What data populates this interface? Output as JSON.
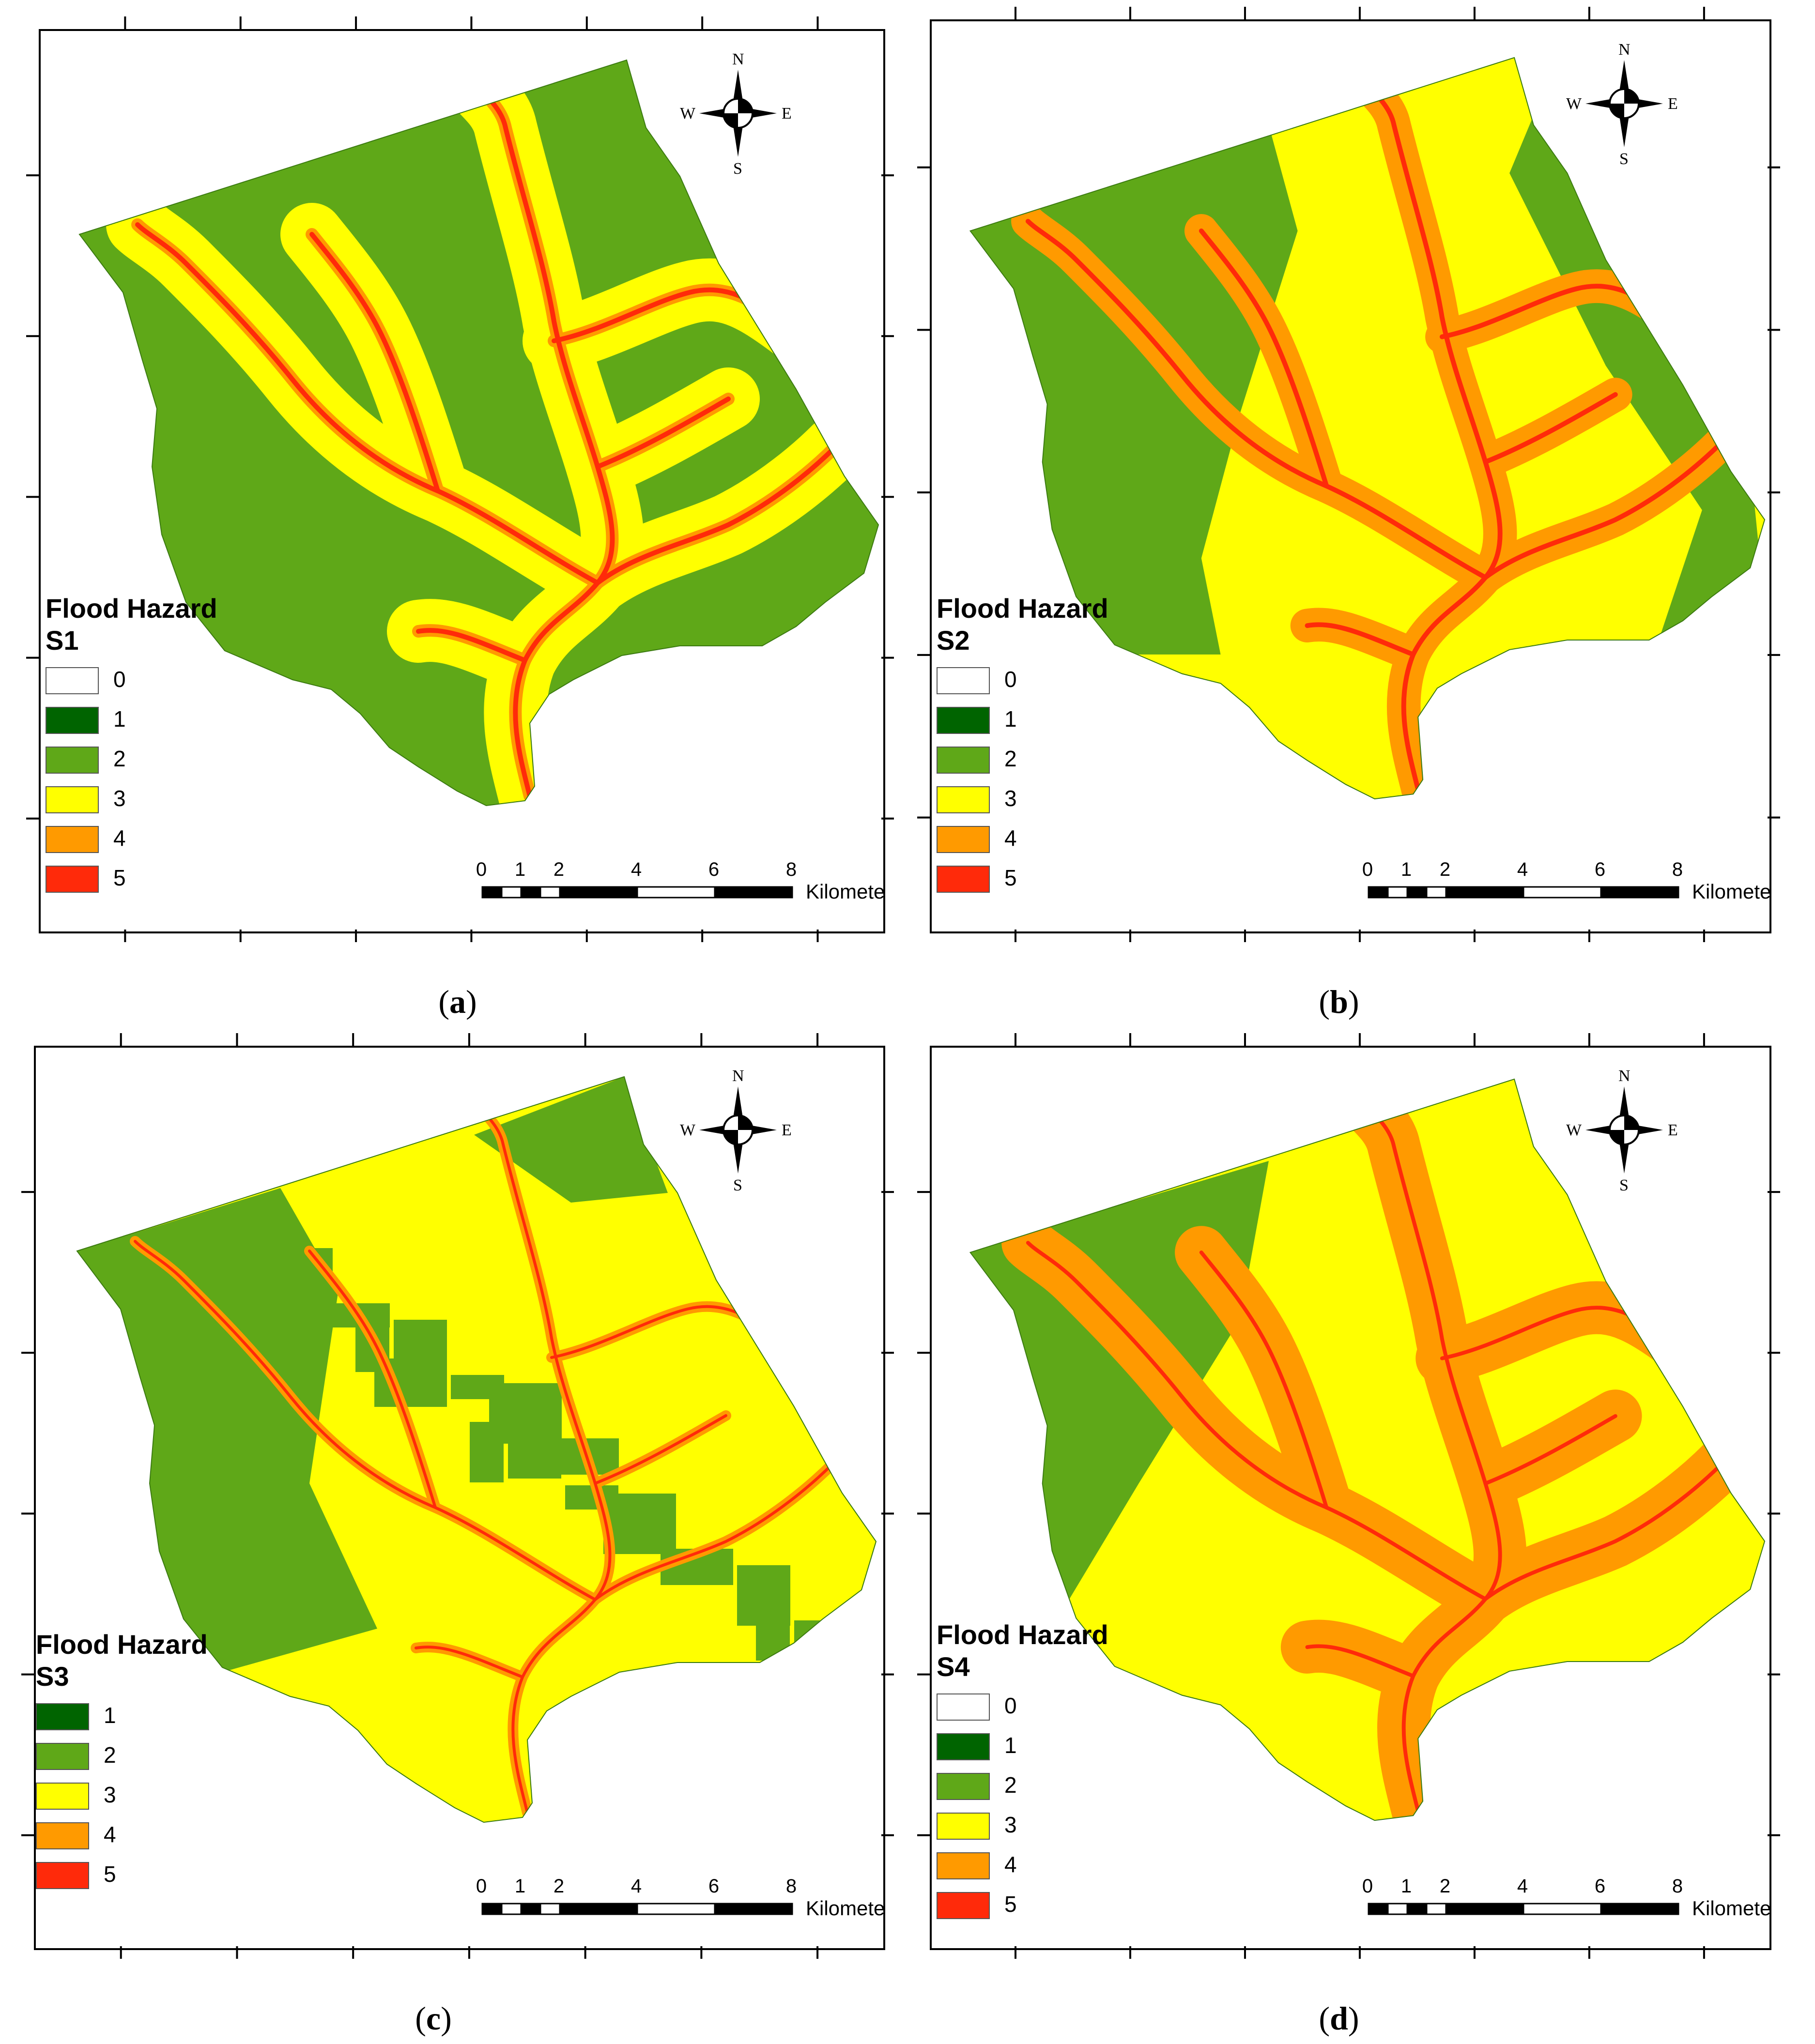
{
  "colors": {
    "class_0": "#ffffff",
    "class_1": "#006400",
    "class_2": "#5fa818",
    "class_3": "#ffff00",
    "class_4": "#ff9a00",
    "class_5": "#ff2a0a"
  },
  "compass": {
    "n": "N",
    "s": "S",
    "e": "E",
    "w": "W"
  },
  "scale": {
    "ticks": [
      "0",
      "1",
      "2",
      "4",
      "6",
      "8"
    ],
    "unit": "Kilometers"
  },
  "panels": [
    {
      "id": "a",
      "caption": "(a)",
      "caption_letter": "a",
      "legend_title_1": "Flood Hazard",
      "legend_title_2": "S1",
      "legend_classes": [
        "0",
        "1",
        "2",
        "3",
        "4",
        "5"
      ],
      "dominant_class": "2",
      "icon": "flood-hazard-map-icon"
    },
    {
      "id": "b",
      "caption": "(b)",
      "caption_letter": "b",
      "legend_title_1": "Flood Hazard",
      "legend_title_2": "S2",
      "legend_classes": [
        "0",
        "1",
        "2",
        "3",
        "4",
        "5"
      ],
      "dominant_class": "3",
      "icon": "flood-hazard-map-icon"
    },
    {
      "id": "c",
      "caption": "(c)",
      "caption_letter": "c",
      "legend_title_1": "Flood Hazard",
      "legend_title_2": "S3",
      "legend_classes": [
        "1",
        "2",
        "3",
        "4",
        "5"
      ],
      "dominant_class": "3",
      "icon": "flood-hazard-map-icon"
    },
    {
      "id": "d",
      "caption": "(d)",
      "caption_letter": "d",
      "legend_title_1": "Flood Hazard",
      "legend_title_2": "S4",
      "legend_classes": [
        "0",
        "1",
        "2",
        "3",
        "4",
        "5"
      ],
      "dominant_class": "3",
      "icon": "flood-hazard-map-icon"
    }
  ]
}
